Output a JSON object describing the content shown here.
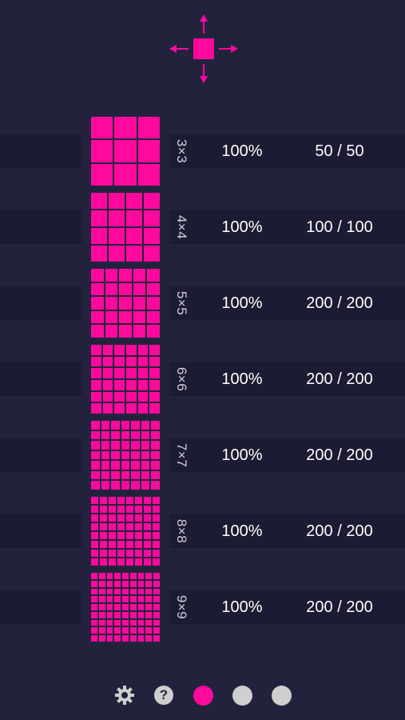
{
  "colors": {
    "background": "#22223d",
    "bar": "#1b1b33",
    "accent": "#ff0a9c",
    "inactive": "#cfcfcf"
  },
  "top_control": {
    "icon": "move-arrows-icon"
  },
  "levels": [
    {
      "size": "3×3",
      "n": 3,
      "percent": "100%",
      "score": "50 / 50"
    },
    {
      "size": "4×4",
      "n": 4,
      "percent": "100%",
      "score": "100 / 100"
    },
    {
      "size": "5×5",
      "n": 5,
      "percent": "100%",
      "score": "200 / 200"
    },
    {
      "size": "6×6",
      "n": 6,
      "percent": "100%",
      "score": "200 / 200"
    },
    {
      "size": "7×7",
      "n": 7,
      "percent": "100%",
      "score": "200 / 200"
    },
    {
      "size": "8×8",
      "n": 8,
      "percent": "100%",
      "score": "200 / 200"
    },
    {
      "size": "9×9",
      "n": 9,
      "percent": "100%",
      "score": "200 / 200"
    }
  ],
  "bottom_bar": {
    "settings_icon": "gear-icon",
    "help_label": "?",
    "pages": [
      {
        "active": true
      },
      {
        "active": false
      },
      {
        "active": false
      }
    ]
  }
}
